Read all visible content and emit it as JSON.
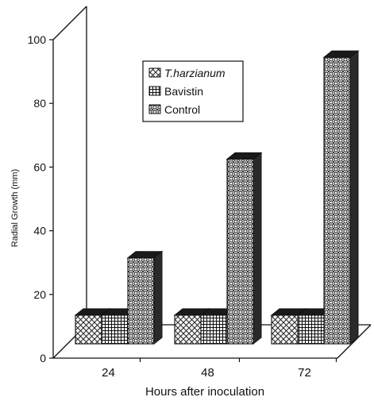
{
  "chart_data": {
    "type": "bar",
    "title": "",
    "xlabel": "Hours after inoculation",
    "ylabel": "Radial Growth (mm)",
    "categories": [
      "24",
      "48",
      "72"
    ],
    "ylim": [
      0,
      100
    ],
    "yticks": [
      "0",
      "20",
      "40",
      "60",
      "80",
      "100"
    ],
    "series": [
      {
        "name": "T.harzianum",
        "values": [
          9,
          9,
          9
        ]
      },
      {
        "name": "Bavistin",
        "values": [
          9,
          9,
          9
        ]
      },
      {
        "name": "Control",
        "values": [
          27,
          58,
          90
        ]
      }
    ],
    "grid": false,
    "legend_position": "top-center",
    "colors": {
      "bar_fill": "#f2f2f2",
      "bar_edge": "#111111",
      "top_face": "#1a1a1a",
      "side_face": "#2a2a2a"
    }
  }
}
